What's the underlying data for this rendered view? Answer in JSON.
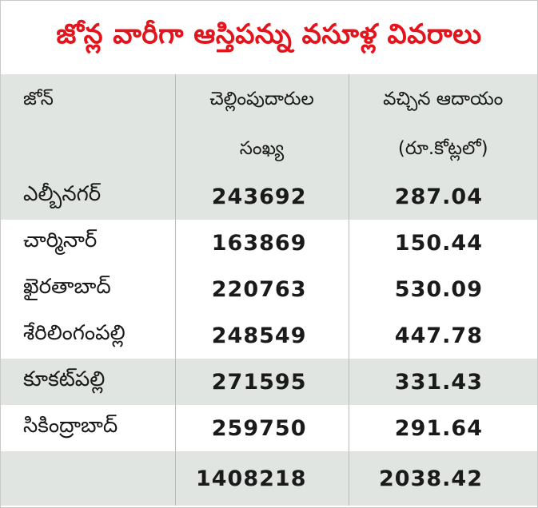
{
  "title": "జోన్ల వారీగా ఆస్తిపన్ను వసూళ్ల వివరాలు",
  "header": {
    "zone": "జోన్",
    "count_line1": "చెల్లింపుదారుల",
    "count_line2": "సంఖ్య",
    "revenue_line1": "వచ్చిన ఆదాయం",
    "revenue_line2": "(రూ.కోట్లలో)"
  },
  "rows": [
    {
      "zone": "ఎల్బీనగర్",
      "payers": "243692",
      "revenue": "287.04"
    },
    {
      "zone": "చార్మినార్",
      "payers": "163869",
      "revenue": "150.44"
    },
    {
      "zone": "ఖైరతాబాద్",
      "payers": "220763",
      "revenue": "530.09"
    },
    {
      "zone": "శేరిలింగంపల్లి",
      "payers": "248549",
      "revenue": "447.78"
    },
    {
      "zone": "కూకట్‌పల్లి",
      "payers": "271595",
      "revenue": "331.43"
    },
    {
      "zone": "సికింద్రాబాద్",
      "payers": "259750",
      "revenue": "291.64"
    }
  ],
  "total": {
    "zone": "",
    "payers": "1408218",
    "revenue": "2038.42"
  },
  "colors": {
    "title": "#e3141c",
    "shade": "#e1e5e2"
  }
}
